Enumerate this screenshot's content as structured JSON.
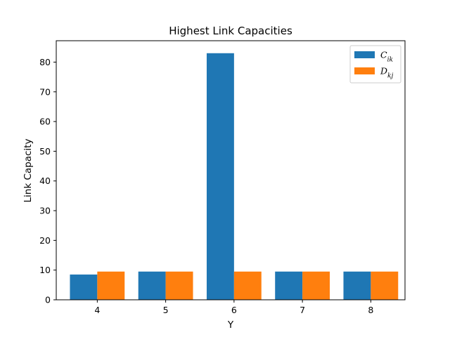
{
  "chart_data": {
    "type": "bar",
    "title": "Highest Link Capacities",
    "xlabel": "Y",
    "ylabel": "Link Capacity",
    "categories": [
      "4",
      "5",
      "6",
      "7",
      "8"
    ],
    "series": [
      {
        "name": "C_ik",
        "label_main": "C",
        "label_sub": "ik",
        "color": "#1f77b4",
        "values": [
          8.5,
          9.5,
          83,
          9.5,
          9.5
        ]
      },
      {
        "name": "D_kj",
        "label_main": "D",
        "label_sub": "kj",
        "color": "#ff7f0e",
        "values": [
          9.5,
          9.5,
          9.5,
          9.5,
          9.5
        ]
      }
    ],
    "ylim": [
      0,
      87.2
    ],
    "yticks": [
      0,
      10,
      20,
      30,
      40,
      50,
      60,
      70,
      80
    ],
    "grid": false,
    "legend_position": "top-right"
  }
}
